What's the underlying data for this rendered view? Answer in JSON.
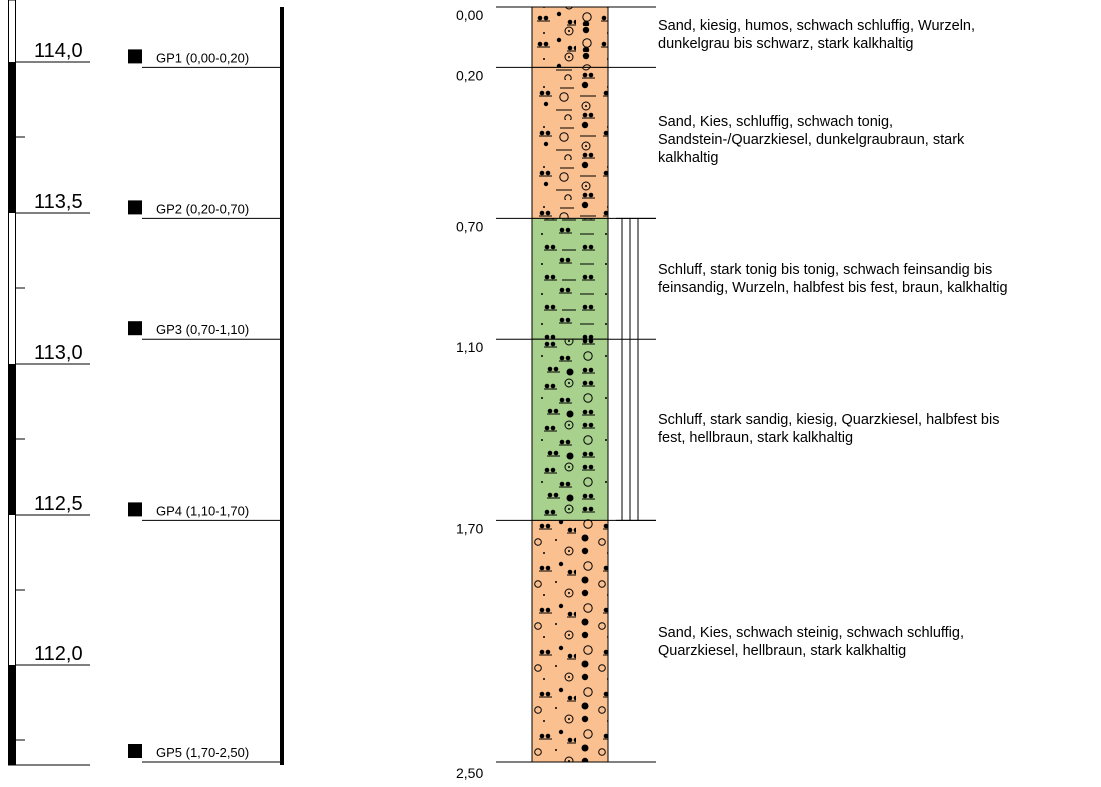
{
  "elevation_scale": {
    "labels": [
      "114,0",
      "113,5",
      "113,0",
      "112,5",
      "112,0"
    ]
  },
  "samples": [
    {
      "label": "GP1 (0,00-0,20)"
    },
    {
      "label": "GP2 (0,20-0,70)"
    },
    {
      "label": "GP3 (0,70-1,10)"
    },
    {
      "label": "GP4 (1,10-1,70)"
    },
    {
      "label": "GP5 (1,70-2,50)"
    }
  ],
  "depth_labels": [
    "0,00",
    "0,20",
    "0,70",
    "1,10",
    "1,70",
    "2,50"
  ],
  "layers": [
    {
      "top": 0.0,
      "bottom": 0.2,
      "color": "#fac090",
      "pattern": "sand-gravel-humus",
      "description": [
        "Sand, kiesig, humos, schwach schluffig, Wurzeln,",
        "dunkelgrau bis schwarz, stark kalkhaltig"
      ]
    },
    {
      "top": 0.2,
      "bottom": 0.7,
      "color": "#fac090",
      "pattern": "sand-gravel-silt",
      "description": [
        "Sand, Kies, schluffig, schwach tonig,",
        "Sandstein-/Quarzkiesel, dunkelgraubraun, stark",
        "kalkhaltig"
      ]
    },
    {
      "top": 0.7,
      "bottom": 1.1,
      "color": "#a9d18e",
      "pattern": "silt-clay",
      "description": [
        "Schluff, stark tonig bis tonig, schwach feinsandig bis",
        "feinsandig, Wurzeln, halbfest bis fest, braun, kalkhaltig"
      ]
    },
    {
      "top": 1.1,
      "bottom": 1.7,
      "color": "#a9d18e",
      "pattern": "silt-sand-gravel",
      "description": [
        "Schluff, stark sandig, kiesig, Quarzkiesel, halbfest bis",
        "fest, hellbraun, stark kalkhaltig"
      ]
    },
    {
      "top": 1.7,
      "bottom": 2.5,
      "color": "#fac090",
      "pattern": "sand-gravel-stones",
      "description": [
        "Sand, Kies, schwach steinig, schwach schluffig,",
        "Quarzkiesel, hellbraun, stark kalkhaltig"
      ]
    }
  ],
  "consistency_bracket": {
    "top": 0.7,
    "bottom": 1.7
  }
}
